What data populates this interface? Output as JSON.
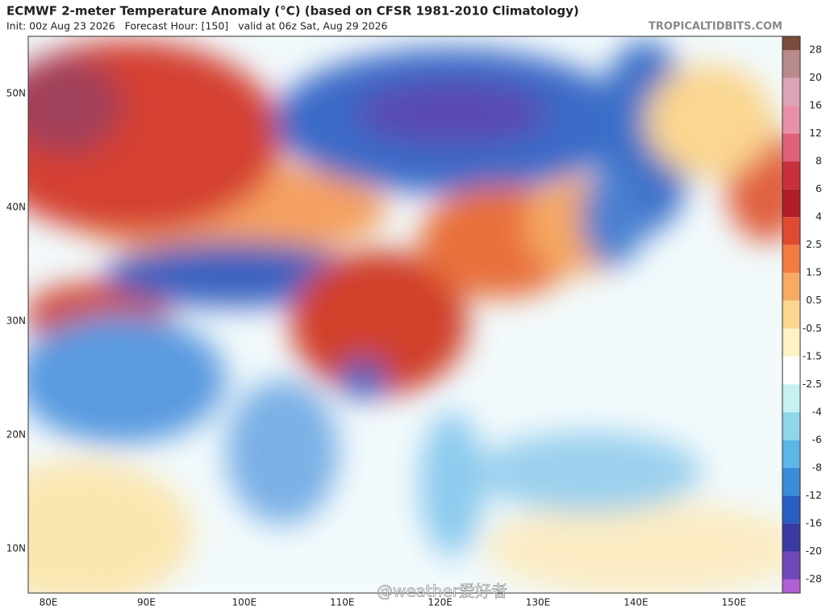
{
  "header": {
    "title": "ECMWF 2-meter Temperature Anomaly (°C) (based on CFSR 1981-2010 Climatology)",
    "subtitle": "Init: 00z Aug 23 2026   Forecast Hour: [150]   valid at 06z Sat, Aug 29 2026",
    "source": "TROPICALTIDBITS.COM"
  },
  "map": {
    "lat_labels": [
      "50N",
      "40N",
      "30N",
      "20N",
      "10N"
    ],
    "lon_labels": [
      "80E",
      "90E",
      "100E",
      "110E",
      "120E",
      "130E",
      "140E",
      "150E"
    ],
    "watermark": "@weather爱好者"
  },
  "colorbar": {
    "labels": [
      "28",
      "20",
      "16",
      "12",
      "8",
      "6",
      "4",
      "2.5",
      "1.5",
      "0.5",
      "-0.5",
      "-1.5",
      "-2.5",
      "-4",
      "-6",
      "-8",
      "-12",
      "-16",
      "-20",
      "-28"
    ],
    "colors": [
      "#7a4a3a",
      "#b98a8a",
      "#dba4b8",
      "#e890aa",
      "#e0607a",
      "#c8303e",
      "#b01e28",
      "#e04a30",
      "#f07c44",
      "#f6aa64",
      "#fbd690",
      "#fdf2c4",
      "#ffffff",
      "#c6f0f2",
      "#8ed6e8",
      "#5cb6e6",
      "#3a8cd8",
      "#2a5ec0",
      "#3a3aa0",
      "#7048b8",
      "#b060d0"
    ]
  }
}
